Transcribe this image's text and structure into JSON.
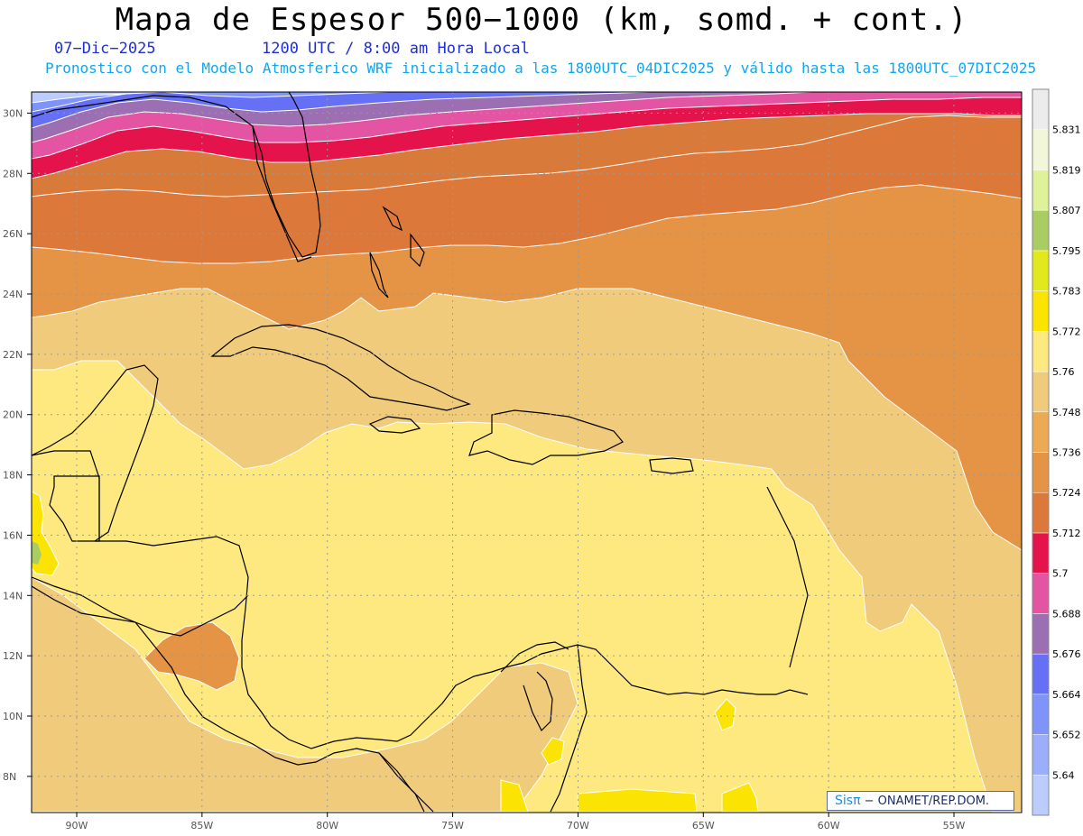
{
  "header": {
    "title": "Mapa de Espesor 500−1000 (km, somd. + cont.)",
    "date": "07−Dic−2025",
    "time": "1200 UTC / 8:00 am Hora Local",
    "forecast": "Pronostico con el Modelo Atmosferico WRF inicializado a las 1800UTC_04DIC2025 y válido hasta las  1800UTC_07DIC2025"
  },
  "map": {
    "lon_range": [
      -91.8,
      -52.3
    ],
    "lat_range": [
      6.8,
      30.7
    ],
    "lat_ticks": [
      "8N",
      "10N",
      "12N",
      "14N",
      "16N",
      "18N",
      "20N",
      "22N",
      "24N",
      "26N",
      "28N",
      "30N"
    ],
    "lon_ticks": [
      "90W",
      "85W",
      "80W",
      "75W",
      "70W",
      "65W",
      "60W",
      "55W"
    ],
    "gridlines": true,
    "contour_levels_km": [
      5.64,
      5.652,
      5.664,
      5.676,
      5.688,
      5.7,
      5.712,
      5.724,
      5.736,
      5.748,
      5.76,
      5.772,
      5.783,
      5.795,
      5.807,
      5.819,
      5.831
    ]
  },
  "colorbar": {
    "labels": [
      "5.64",
      "5.652",
      "5.664",
      "5.676",
      "5.688",
      "5.7",
      "5.712",
      "5.724",
      "5.736",
      "5.748",
      "5.76",
      "5.772",
      "5.783",
      "5.795",
      "5.807",
      "5.819",
      "5.831"
    ],
    "colors": [
      "#bcccfc",
      "#9aaefc",
      "#7f94fb",
      "#6670f5",
      "#9b6fb2",
      "#e354a2",
      "#e4134b",
      "#dd783b",
      "#e59344",
      "#ecaa55",
      "#f0cb7c",
      "#fde97f",
      "#fbe404",
      "#e1e81c",
      "#a9cd63",
      "#dff29a",
      "#f1f7d8",
      "#ececec"
    ]
  },
  "credit": {
    "brand": "Sisπ",
    "text": "− ONAMET/REP.DOM."
  }
}
